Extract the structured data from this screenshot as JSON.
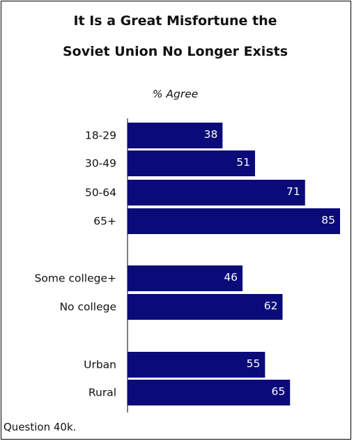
{
  "chart_data": {
    "type": "bar",
    "orientation": "horizontal",
    "title": "It Is a Great Misfortune the Soviet Union No Longer Exists",
    "title_lines": [
      "It Is a Great Misfortune the",
      "Soviet Union No Longer Exists"
    ],
    "subtitle": "% Agree",
    "xlim": [
      0,
      85
    ],
    "bar_color": "#0a0a78",
    "grid": false,
    "categories": [
      "18-29",
      "30-49",
      "50-64",
      "65+",
      "Some college+",
      "No college",
      "Urban",
      "Rural"
    ],
    "values": [
      38,
      51,
      71,
      85,
      46,
      62,
      55,
      65
    ],
    "groups": [
      [
        0,
        1,
        2,
        3
      ],
      [
        4,
        5
      ],
      [
        6,
        7
      ]
    ]
  },
  "footnote": "Question 40k."
}
